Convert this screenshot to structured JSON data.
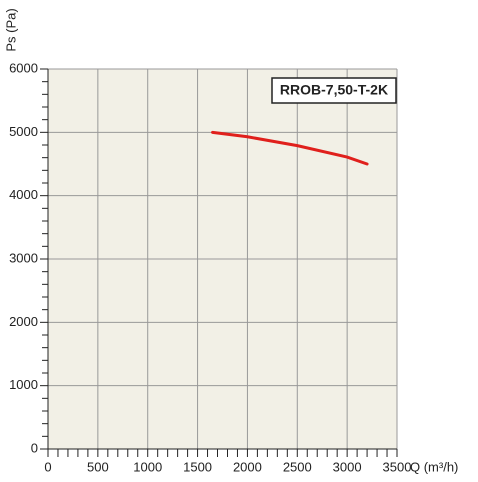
{
  "chart_data": {
    "type": "line",
    "title": "RROB-7,50-T-2K",
    "x_label": "Q (m³/h)",
    "y_label": "Ps (Pa)",
    "series": [
      {
        "name": "RROB-7,50-T-2K",
        "color": "#e0201c",
        "x": [
          1650,
          2000,
          2500,
          3000,
          3200
        ],
        "values": [
          5000,
          4930,
          4790,
          4610,
          4500
        ]
      }
    ],
    "xlim": [
      0,
      3500
    ],
    "xticks": [
      0,
      500,
      1000,
      1500,
      2000,
      2500,
      3000,
      3500
    ],
    "ylim": [
      0,
      6000
    ],
    "yticks": [
      0,
      1000,
      2000,
      3000,
      4000,
      5000,
      6000
    ],
    "grid": true
  }
}
